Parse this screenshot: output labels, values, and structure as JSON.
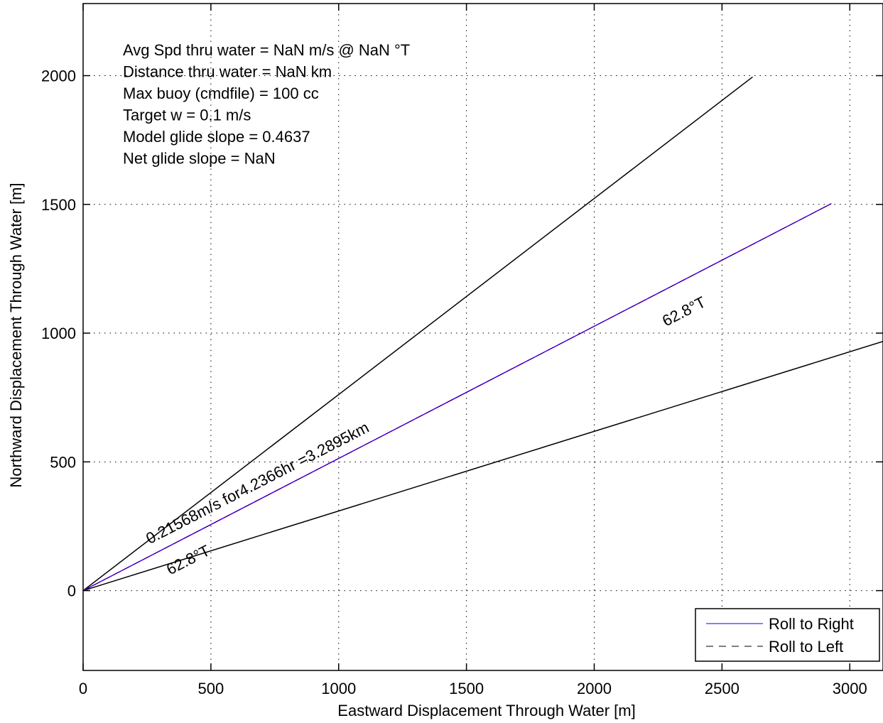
{
  "chart_data": {
    "type": "line",
    "xlabel": "Eastward Displacement Through Water [m]",
    "ylabel": "Northward Displacement Through Water [m]",
    "xlim": [
      0,
      3130
    ],
    "ylim": [
      -310,
      2280
    ],
    "xticks": [
      0,
      500,
      1000,
      1500,
      2000,
      2500,
      3000
    ],
    "yticks": [
      0,
      500,
      1000,
      1500,
      2000
    ],
    "xtick_labels": [
      "0",
      "500",
      "1000",
      "1500",
      "2000",
      "2500",
      "3000"
    ],
    "ytick_labels": [
      "0",
      "500",
      "1000",
      "1500",
      "2000"
    ],
    "grid": true,
    "series": [
      {
        "name": "Roll to Right",
        "color": "#0000ff",
        "style": "solid",
        "x": [
          0,
          2928
        ],
        "y": [
          0,
          1503
        ]
      },
      {
        "name": "Roll to Left",
        "color": "#000000",
        "style": "dashed",
        "x": [
          0,
          2928
        ],
        "y": [
          0,
          1503
        ]
      }
    ],
    "reference_lines": [
      {
        "color": "#000000",
        "x": [
          0,
          2620
        ],
        "y": [
          0,
          1995
        ]
      },
      {
        "color": "#000000",
        "x": [
          0,
          3130
        ],
        "y": [
          0,
          968
        ]
      },
      {
        "color": "#ff00ff",
        "x": [
          0,
          2928
        ],
        "y": [
          0,
          1503
        ]
      }
    ],
    "text_block": [
      "Avg Spd thru water =   NaN m/s @   NaN   °T",
      "Distance thru water =   NaN km",
      "Max buoy (cmdfile) = 100 cc",
      "Target w = 0.1 m/s",
      "Model glide slope = 0.4637",
      "Net glide slope =    NaN"
    ],
    "annotations": [
      {
        "text": "0.21568m/s for4.2366hr =3.2895km",
        "x": 260,
        "y": 180,
        "angle_deg": -27.2
      },
      {
        "text": "62.8°T",
        "x": 340,
        "y": 60,
        "angle_deg": -27.2
      },
      {
        "text": "62.8°T",
        "x": 2280,
        "y": 1025,
        "angle_deg": -27.2
      }
    ],
    "legend": {
      "position": "bottom-right",
      "entries": [
        "Roll to Right",
        "Roll to Left"
      ]
    }
  }
}
